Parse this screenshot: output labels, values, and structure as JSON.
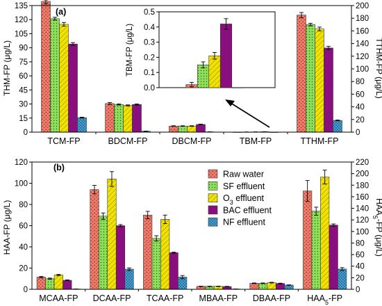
{
  "series_styles": [
    {
      "fill": "#f07a6a",
      "pattern": "dots-dense"
    },
    {
      "fill": "#8ee05a",
      "pattern": "dots"
    },
    {
      "fill": "#f2e200",
      "pattern": "hatch"
    },
    {
      "fill": "#8a0f7e",
      "pattern": "none"
    },
    {
      "fill": "#4aa8dd",
      "pattern": "cross"
    }
  ],
  "chart_data": [
    {
      "id": "panel-a",
      "panel_label": "(a)",
      "type": "bar",
      "categories": [
        "TCM-FP",
        "BDCM-FP",
        "DBCM-FP",
        "TBM-FP",
        "TTHM-FP"
      ],
      "ylabel": "THM-FP (μg/L)",
      "ylabel_right": "TTHM-FP (μg/L)",
      "ylim": [
        0,
        135
      ],
      "yticks": [
        0,
        15,
        30,
        45,
        60,
        75,
        90,
        105,
        120,
        135
      ],
      "ylim_right": [
        0,
        200
      ],
      "yticks_right": [
        0,
        20,
        40,
        60,
        80,
        100,
        120,
        140,
        160,
        180,
        200
      ],
      "right_axis_categories": [
        "TTHM-FP"
      ],
      "grid": false,
      "series": [
        {
          "name": "Raw water",
          "values": [
            140,
            30.5,
            6.5,
            0.02,
            185
          ],
          "errors": [
            3,
            1,
            0.3,
            0.01,
            4
          ]
        },
        {
          "name": "SF effluent",
          "values": [
            121,
            29.5,
            6.5,
            0.15,
            170
          ],
          "errors": [
            1.5,
            0.6,
            0.3,
            0.02,
            2
          ]
        },
        {
          "name": "O3 effluent",
          "values": [
            115,
            28.5,
            6.5,
            0.21,
            163
          ],
          "errors": [
            2,
            0.6,
            0.3,
            0.02,
            3
          ]
        },
        {
          "name": "BAC effluent",
          "values": [
            94,
            29.5,
            8.2,
            0.42,
            133
          ],
          "errors": [
            1.5,
            0.6,
            0.3,
            0.04,
            2.5
          ]
        },
        {
          "name": "NF effluent",
          "values": [
            15.5,
            1.0,
            0.3,
            0.0,
            18.5
          ],
          "errors": [
            0.5,
            0.1,
            0.05,
            0,
            0.6
          ]
        }
      ],
      "inset": {
        "category": "TBM-FP",
        "ylabel": "TBM-FP (μg/L)",
        "ylim": [
          0,
          0.5
        ],
        "yticks": [
          "0.0",
          "0.1",
          "0.2",
          "0.3",
          "0.4",
          "0.5"
        ],
        "values": [
          0.02,
          0.15,
          0.21,
          0.42,
          0.0
        ],
        "errors": [
          0.015,
          0.02,
          0.022,
          0.035,
          0
        ]
      }
    },
    {
      "id": "panel-b",
      "panel_label": "(b)",
      "type": "bar",
      "categories": [
        "MCAA-FP",
        "DCAA-FP",
        "TCAA-FP",
        "MBAA-FP",
        "DBAA-FP",
        "HAA5-FP"
      ],
      "category_labels": [
        {
          "main": "MCAA-FP"
        },
        {
          "main": "DCAA-FP"
        },
        {
          "main": "TCAA-FP"
        },
        {
          "main": "MBAA-FP"
        },
        {
          "main": "DBAA-FP"
        },
        {
          "main": "HAA",
          "sub": "5",
          "tail": "-FP"
        }
      ],
      "ylabel": "HAA-FP (μg/L)",
      "ylabel_right_main": "HAA",
      "ylabel_right_sub": "5",
      "ylabel_right_tail": "-FP (μg/L)",
      "ylim": [
        0,
        120
      ],
      "yticks": [
        0,
        20,
        40,
        60,
        80,
        100,
        120
      ],
      "ylim_right": [
        0,
        220
      ],
      "yticks_right": [
        0,
        20,
        40,
        60,
        80,
        100,
        120,
        140,
        160,
        180,
        200,
        220
      ],
      "right_axis_categories": [
        "HAA5-FP"
      ],
      "grid": false,
      "series": [
        {
          "name": "Raw water",
          "values": [
            11.5,
            94,
            70,
            2.8,
            5.7,
            170
          ],
          "errors": [
            0.6,
            4,
            3.5,
            0.2,
            0.3,
            18
          ]
        },
        {
          "name": "SF effluent",
          "values": [
            10,
            69,
            48,
            2.8,
            5.7,
            135
          ],
          "errors": [
            0.6,
            3,
            2.5,
            0.2,
            0.3,
            7
          ]
        },
        {
          "name": "O3 effluent",
          "values": [
            13.5,
            104,
            66,
            2.8,
            6.3,
            194
          ],
          "errors": [
            0.6,
            7,
            4,
            0.2,
            0.3,
            12
          ]
        },
        {
          "name": "BAC effluent",
          "values": [
            8.5,
            60,
            34.5,
            2.6,
            5.5,
            111
          ],
          "errors": [
            0.4,
            1,
            0.6,
            0.2,
            0.3,
            2
          ]
        },
        {
          "name": "NF effluent",
          "values": [
            0.3,
            19,
            11.5,
            0.3,
            4,
            35
          ],
          "errors": [
            0.05,
            1.2,
            1.5,
            0.05,
            0.2,
            2.5
          ]
        }
      ]
    }
  ],
  "legend": {
    "placement": "top-right",
    "entries": [
      {
        "main": "Raw water"
      },
      {
        "main": "SF effluent"
      },
      {
        "main": "O",
        "sub": "3",
        "tail": " effluent"
      },
      {
        "main": "BAC effluent"
      },
      {
        "main": "NF effluent"
      }
    ]
  }
}
